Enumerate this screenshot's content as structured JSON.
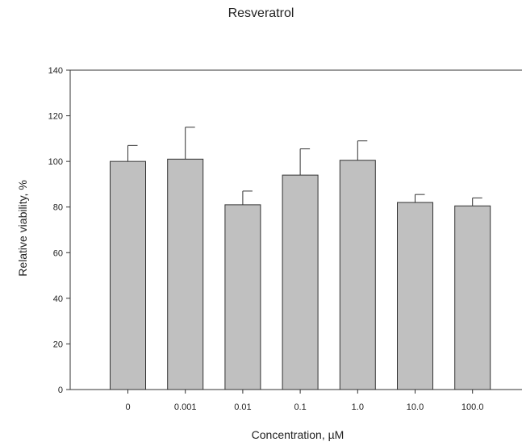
{
  "chart_data": {
    "type": "bar",
    "title": "Resveratrol",
    "xlabel": "Concentration, µM",
    "ylabel": "Relative viability, %",
    "categories": [
      "0",
      "0.001",
      "0.01",
      "0.1",
      "1.0",
      "10.0",
      "100.0"
    ],
    "values": [
      100,
      101,
      81,
      94,
      100.5,
      82,
      80.5
    ],
    "error_upper": [
      7,
      14,
      6,
      11.5,
      8.5,
      3.5,
      3.5
    ],
    "ylim": [
      0,
      140
    ],
    "yticks": [
      0,
      20,
      40,
      60,
      80,
      100,
      120,
      140
    ],
    "bar_color": "#c0c0c0",
    "grid": false,
    "legend": false
  }
}
